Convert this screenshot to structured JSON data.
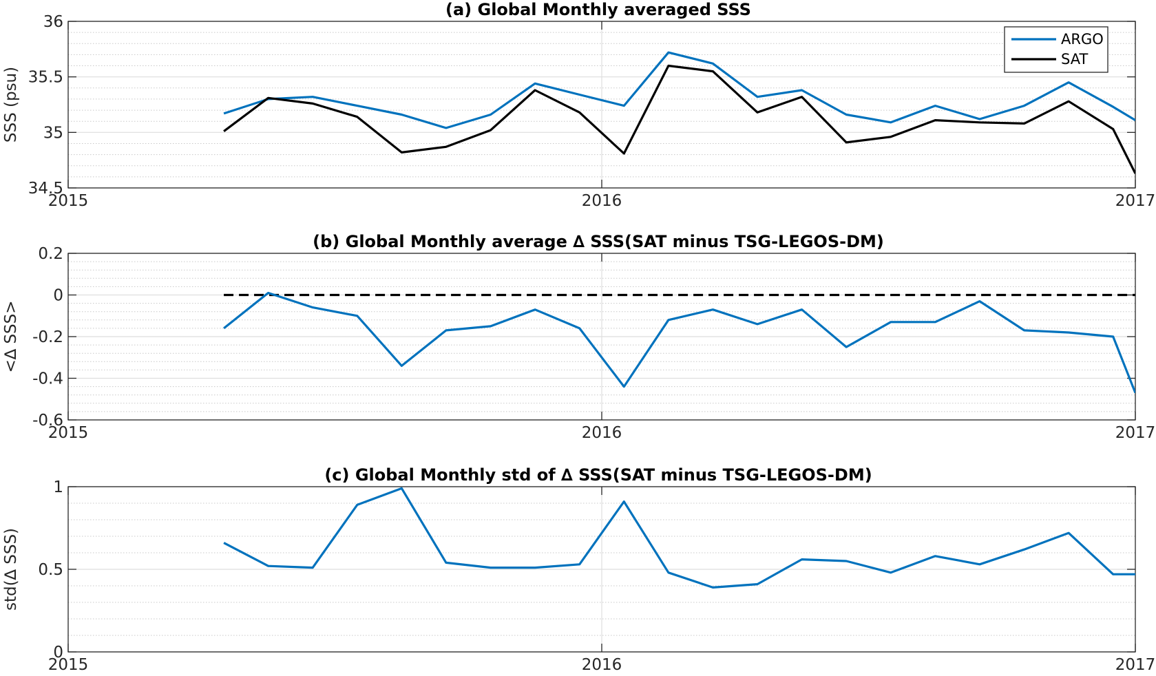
{
  "chart_data": [
    {
      "type": "line",
      "title": "(a) Global Monthly averaged SSS",
      "ylabel": "SSS (psu)",
      "xlim": [
        2015,
        2017
      ],
      "ylim": [
        34.5,
        36
      ],
      "x_ticks": [
        "2015",
        "2016",
        "2017"
      ],
      "y_ticks": [
        34.5,
        35,
        35.5,
        36
      ],
      "y_tick_labels": [
        "34.5",
        "35",
        "35.5",
        "36"
      ],
      "grid": true,
      "legend": "top-right",
      "x": [
        2015.2917,
        2015.375,
        2015.4583,
        2015.5417,
        2015.625,
        2015.7083,
        2015.7917,
        2015.875,
        2015.9583,
        2016.0417,
        2016.125,
        2016.2083,
        2016.2917,
        2016.375,
        2016.4583,
        2016.5417,
        2016.625,
        2016.7083,
        2016.7917,
        2016.875,
        2016.9583,
        2017.0
      ],
      "series": [
        {
          "name": "ARGO",
          "color": "#0072bd",
          "values": [
            35.17,
            35.3,
            35.32,
            35.24,
            35.16,
            35.04,
            35.16,
            35.44,
            35.34,
            35.24,
            35.72,
            35.62,
            35.32,
            35.38,
            35.16,
            35.09,
            35.24,
            35.12,
            35.24,
            35.45,
            35.23,
            35.11
          ]
        },
        {
          "name": "SAT",
          "color": "#000000",
          "values": [
            35.01,
            35.31,
            35.26,
            35.14,
            34.82,
            34.87,
            35.02,
            35.38,
            35.18,
            34.81,
            35.6,
            35.55,
            35.18,
            35.32,
            34.91,
            34.96,
            35.11,
            35.09,
            35.08,
            35.28,
            35.03,
            34.63
          ]
        }
      ]
    },
    {
      "type": "line",
      "title": "(b) Global Monthly average ∆ SSS(SAT minus TSG-LEGOS-DM)",
      "ylabel": "<∆ SSS>",
      "xlim": [
        2015,
        2017
      ],
      "ylim": [
        -0.6,
        0.2
      ],
      "x_ticks": [
        "2015",
        "2016",
        "2017"
      ],
      "y_ticks": [
        -0.6,
        -0.4,
        -0.2,
        0,
        0.2
      ],
      "y_tick_labels": [
        "-0.6",
        "-0.4",
        "-0.2",
        "0",
        "0.2"
      ],
      "grid": true,
      "reference_line": {
        "y": 0,
        "style": "dashed",
        "color": "#000000",
        "x_range": [
          2015.2917,
          2017.0
        ]
      },
      "x": [
        2015.2917,
        2015.375,
        2015.4583,
        2015.5417,
        2015.625,
        2015.7083,
        2015.7917,
        2015.875,
        2015.9583,
        2016.0417,
        2016.125,
        2016.2083,
        2016.2917,
        2016.375,
        2016.4583,
        2016.5417,
        2016.625,
        2016.7083,
        2016.7917,
        2016.875,
        2016.9583,
        2017.0
      ],
      "series": [
        {
          "color": "#0072bd",
          "values": [
            -0.16,
            0.01,
            -0.06,
            -0.1,
            -0.34,
            -0.17,
            -0.15,
            -0.07,
            -0.16,
            -0.44,
            -0.12,
            -0.07,
            -0.14,
            -0.07,
            -0.25,
            -0.13,
            -0.13,
            -0.03,
            -0.17,
            -0.18,
            -0.2,
            -0.47
          ]
        }
      ]
    },
    {
      "type": "line",
      "title": "(c) Global Monthly std of ∆ SSS(SAT minus TSG-LEGOS-DM)",
      "ylabel": "std(∆ SSS)",
      "xlim": [
        2015,
        2017
      ],
      "ylim": [
        0,
        1
      ],
      "x_ticks": [
        "2015",
        "2016",
        "2017"
      ],
      "y_ticks": [
        0,
        0.5,
        1
      ],
      "y_tick_labels": [
        "0",
        "0.5",
        "1"
      ],
      "grid": true,
      "x": [
        2015.2917,
        2015.375,
        2015.4583,
        2015.5417,
        2015.625,
        2015.7083,
        2015.7917,
        2015.875,
        2015.9583,
        2016.0417,
        2016.125,
        2016.2083,
        2016.2917,
        2016.375,
        2016.4583,
        2016.5417,
        2016.625,
        2016.7083,
        2016.7917,
        2016.875,
        2016.9583,
        2017.0
      ],
      "series": [
        {
          "color": "#0072bd",
          "values": [
            0.66,
            0.52,
            0.51,
            0.89,
            0.99,
            0.54,
            0.51,
            0.51,
            0.53,
            0.91,
            0.48,
            0.39,
            0.41,
            0.56,
            0.55,
            0.48,
            0.58,
            0.53,
            0.62,
            0.72,
            0.47,
            0.47
          ]
        }
      ]
    }
  ]
}
